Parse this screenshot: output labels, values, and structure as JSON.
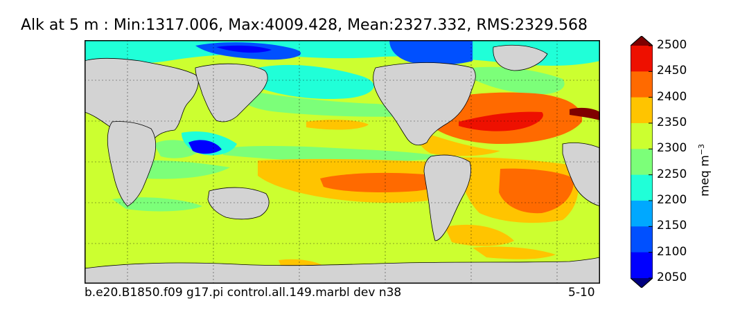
{
  "title": "Alk at 5 m : Min:1317.006, Max:4009.428, Mean:2327.332, RMS:2329.568",
  "footer": {
    "case_name": "b.e20.B1850.f09 g17.pi control.all.149.marbl dev n38",
    "period": "5-10"
  },
  "colorbar": {
    "units_base": "meq m",
    "units_exp": "−3",
    "levels": [
      2050,
      2100,
      2150,
      2200,
      2250,
      2300,
      2350,
      2400,
      2450,
      2500
    ],
    "tick_labels": [
      "2050",
      "2100",
      "2150",
      "2200",
      "2250",
      "2300",
      "2350",
      "2400",
      "2450",
      "2500"
    ],
    "colors": [
      "#00007f",
      "#0000ff",
      "#0050ff",
      "#00a8ff",
      "#20ffd8",
      "#7cff79",
      "#ccff30",
      "#ffc400",
      "#ff6a00",
      "#ee1000",
      "#7f0000"
    ]
  },
  "map": {
    "land_color": "#d3d3d3",
    "background_color": "#ccff30"
  }
}
